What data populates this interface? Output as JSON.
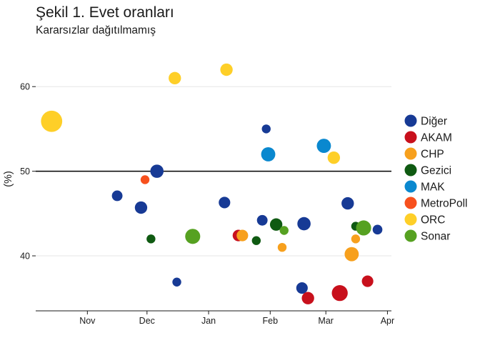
{
  "chart_data": {
    "type": "scatter",
    "title": "Şekil 1. Evet oranları",
    "subtitle": "Kararsızlar dağıtılmamış",
    "ylabel": "(%)",
    "xlabel": "",
    "x_axis": {
      "type": "date",
      "range": [
        "2016-10-06",
        "2017-04-03"
      ],
      "ticks": [
        {
          "date": "2016-11-01",
          "label": "Nov"
        },
        {
          "date": "2016-12-01",
          "label": "Dec"
        },
        {
          "date": "2017-01-01",
          "label": "Jan"
        },
        {
          "date": "2017-02-01",
          "label": "Feb"
        },
        {
          "date": "2017-03-01",
          "label": "Mar"
        },
        {
          "date": "2017-04-01",
          "label": "Apr"
        }
      ]
    },
    "y_axis": {
      "range": [
        33.5,
        65
      ],
      "ticks": [
        40,
        50,
        60
      ],
      "gridlines": true
    },
    "reference_line": {
      "y": 50
    },
    "legend": {
      "position": "right"
    },
    "series": [
      {
        "name": "Diğer",
        "color": "#173a95",
        "points": [
          {
            "x": "2016-11-16",
            "y": 47.1,
            "size": 1.2
          },
          {
            "x": "2016-11-28",
            "y": 45.7,
            "size": 1.4
          },
          {
            "x": "2016-12-06",
            "y": 50.0,
            "size": 1.5
          },
          {
            "x": "2016-12-16",
            "y": 36.9,
            "size": 1.0
          },
          {
            "x": "2017-01-09",
            "y": 46.3,
            "size": 1.3
          },
          {
            "x": "2017-01-28",
            "y": 44.2,
            "size": 1.2
          },
          {
            "x": "2017-01-30",
            "y": 55.0,
            "size": 1.0
          },
          {
            "x": "2017-02-17",
            "y": 36.2,
            "size": 1.3
          },
          {
            "x": "2017-02-18",
            "y": 43.8,
            "size": 1.5
          },
          {
            "x": "2017-03-12",
            "y": 46.2,
            "size": 1.4
          },
          {
            "x": "2017-03-27",
            "y": 43.1,
            "size": 1.1
          }
        ]
      },
      {
        "name": "AKAM",
        "color": "#c8101c",
        "points": [
          {
            "x": "2017-01-16",
            "y": 42.4,
            "size": 1.3
          },
          {
            "x": "2017-02-20",
            "y": 35.0,
            "size": 1.4
          },
          {
            "x": "2017-03-08",
            "y": 35.6,
            "size": 1.8
          },
          {
            "x": "2017-03-22",
            "y": 37.0,
            "size": 1.3
          }
        ]
      },
      {
        "name": "CHP",
        "color": "#f7a01d",
        "points": [
          {
            "x": "2017-01-18",
            "y": 42.4,
            "size": 1.3
          },
          {
            "x": "2017-02-07",
            "y": 41.0,
            "size": 1.0
          },
          {
            "x": "2017-03-14",
            "y": 40.2,
            "size": 1.6
          },
          {
            "x": "2017-03-16",
            "y": 42.0,
            "size": 1.0
          }
        ]
      },
      {
        "name": "Gezici",
        "color": "#0f5a12",
        "points": [
          {
            "x": "2016-12-03",
            "y": 42.0,
            "size": 1.0
          },
          {
            "x": "2017-01-25",
            "y": 41.8,
            "size": 1.0
          },
          {
            "x": "2017-02-04",
            "y": 43.7,
            "size": 1.4
          },
          {
            "x": "2017-03-16",
            "y": 43.5,
            "size": 1.0
          }
        ]
      },
      {
        "name": "MAK",
        "color": "#0a88cf",
        "points": [
          {
            "x": "2017-01-31",
            "y": 52.0,
            "size": 1.6
          },
          {
            "x": "2017-02-28",
            "y": 53.0,
            "size": 1.6
          }
        ]
      },
      {
        "name": "MetroPoll",
        "color": "#f7501d",
        "points": [
          {
            "x": "2016-11-30",
            "y": 49.0,
            "size": 1.0
          }
        ]
      },
      {
        "name": "ORC",
        "color": "#fecf28",
        "points": [
          {
            "x": "2016-10-14",
            "y": 55.9,
            "size": 2.4
          },
          {
            "x": "2016-12-15",
            "y": 61.0,
            "size": 1.4
          },
          {
            "x": "2017-01-10",
            "y": 62.0,
            "size": 1.4
          },
          {
            "x": "2017-03-05",
            "y": 51.6,
            "size": 1.4
          }
        ]
      },
      {
        "name": "Sonar",
        "color": "#56a121",
        "points": [
          {
            "x": "2016-12-24",
            "y": 42.3,
            "size": 1.7
          },
          {
            "x": "2017-02-08",
            "y": 43.0,
            "size": 1.0
          },
          {
            "x": "2017-03-20",
            "y": 43.3,
            "size": 1.7
          }
        ]
      }
    ]
  }
}
